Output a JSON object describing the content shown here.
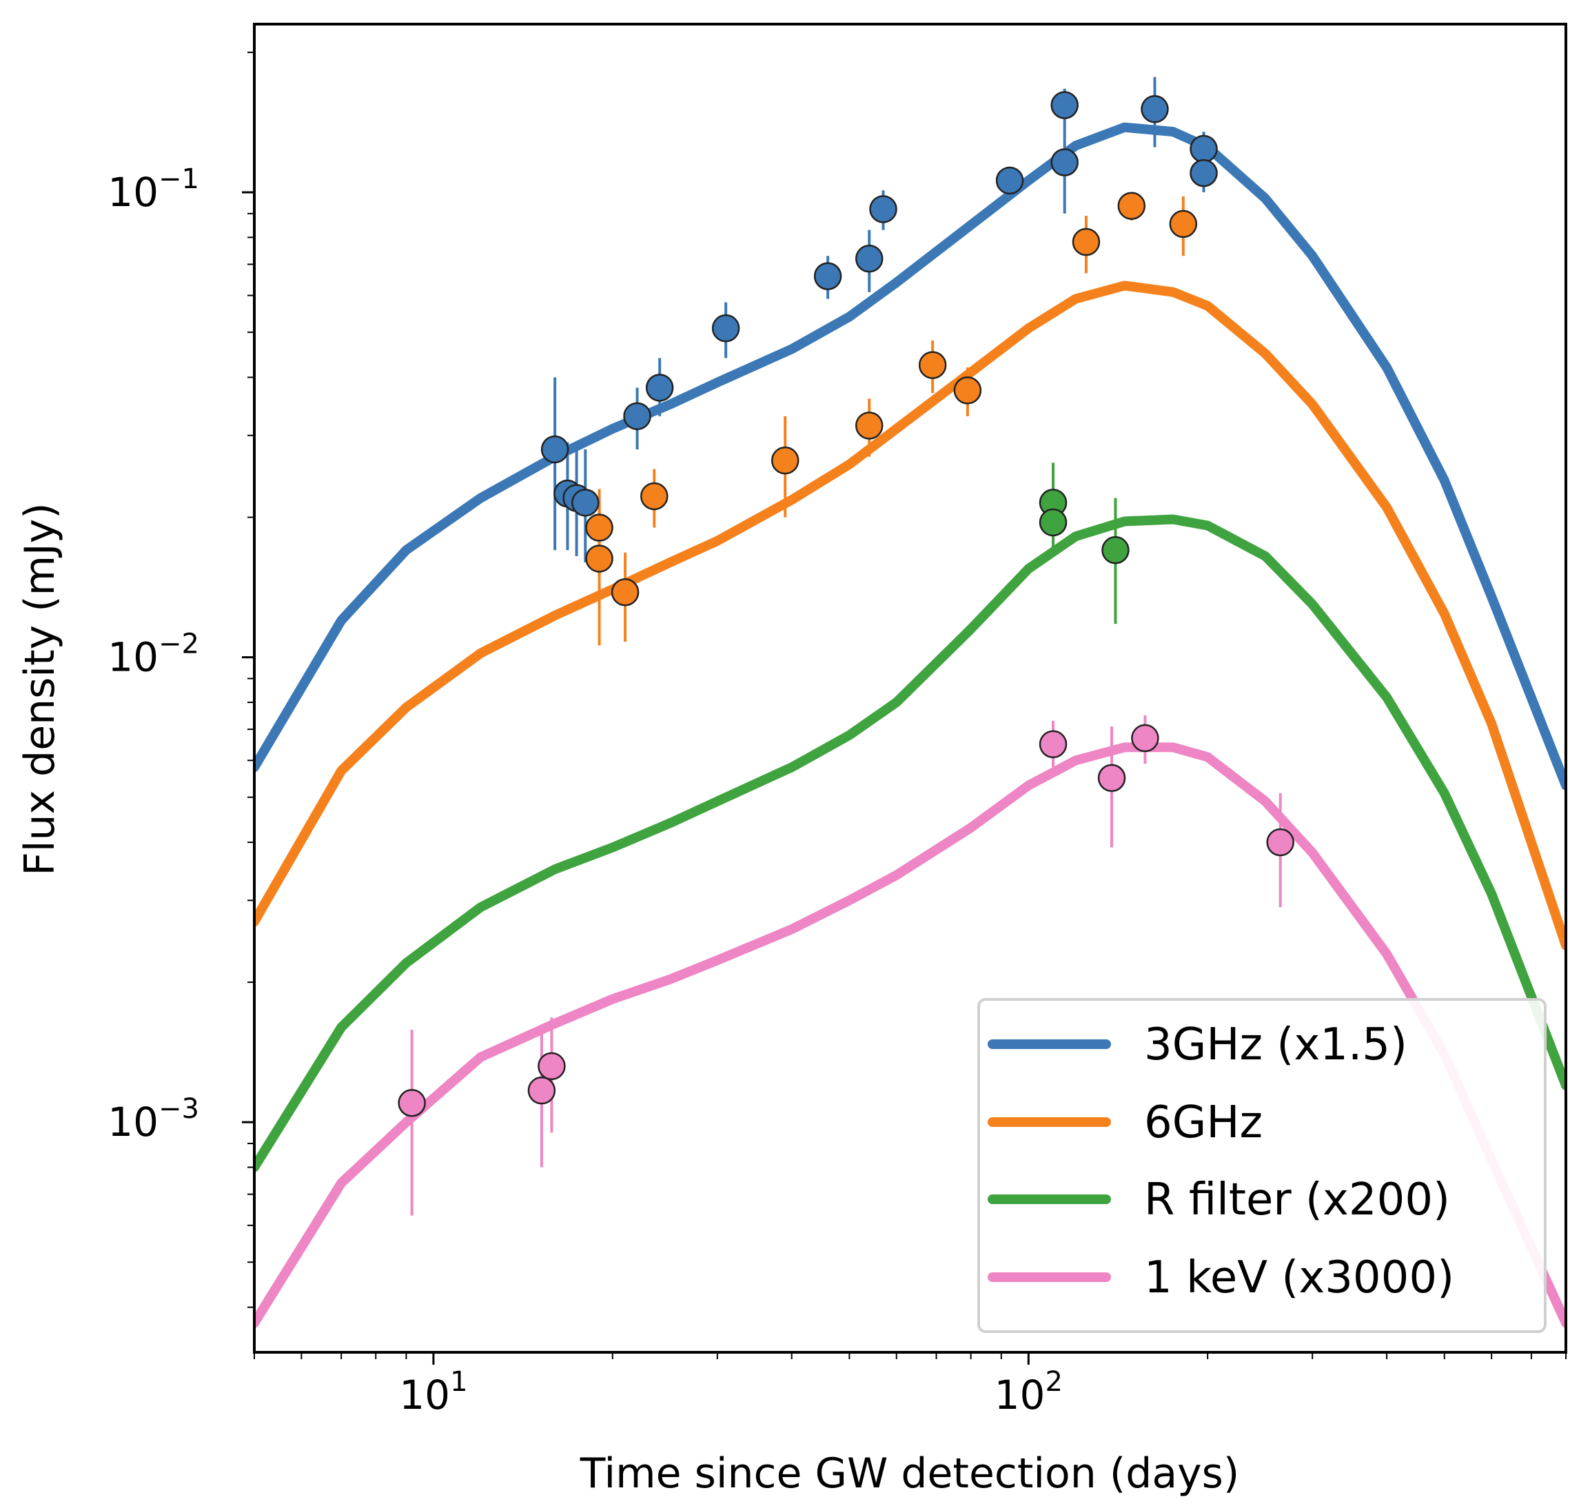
{
  "chart_data": {
    "type": "line",
    "x_scale": "log",
    "y_scale": "log",
    "xlabel": "Time since GW detection (days)",
    "ylabel": "Flux density (mJy)",
    "xlim": [
      5,
      800
    ],
    "ylim": [
      0.00032,
      0.23
    ],
    "x_ticks": [
      {
        "value": 10,
        "base": "10",
        "exp": "1"
      },
      {
        "value": 100,
        "base": "10",
        "exp": "2"
      }
    ],
    "y_ticks": [
      {
        "value": 0.001,
        "base": "10",
        "exp": "−3"
      },
      {
        "value": 0.01,
        "base": "10",
        "exp": "−2"
      },
      {
        "value": 0.1,
        "base": "10",
        "exp": "−1"
      }
    ],
    "legend_position": "lower-right",
    "series": [
      {
        "name": "3GHz (x1.5)",
        "color": "#3b78b5",
        "model": {
          "x": [
            5,
            7,
            9,
            12,
            16,
            20,
            25,
            30,
            40,
            50,
            60,
            80,
            100,
            120,
            145,
            175,
            200,
            250,
            300,
            400,
            500,
            600,
            800
          ],
          "y": [
            0.0058,
            0.012,
            0.017,
            0.022,
            0.027,
            0.031,
            0.035,
            0.039,
            0.046,
            0.054,
            0.064,
            0.085,
            0.106,
            0.126,
            0.138,
            0.135,
            0.125,
            0.097,
            0.073,
            0.042,
            0.024,
            0.0135,
            0.0053
          ]
        },
        "points": [
          {
            "x": 16,
            "y": 0.028,
            "ylo": 0.017,
            "yhi": 0.04
          },
          {
            "x": 16.8,
            "y": 0.0225,
            "ylo": 0.017,
            "yhi": 0.029
          },
          {
            "x": 17.4,
            "y": 0.022,
            "ylo": 0.0165,
            "yhi": 0.0285
          },
          {
            "x": 18,
            "y": 0.0215,
            "ylo": 0.016,
            "yhi": 0.028
          },
          {
            "x": 22,
            "y": 0.033,
            "ylo": 0.028,
            "yhi": 0.038
          },
          {
            "x": 24,
            "y": 0.038,
            "ylo": 0.033,
            "yhi": 0.044
          },
          {
            "x": 31,
            "y": 0.051,
            "ylo": 0.044,
            "yhi": 0.058
          },
          {
            "x": 46,
            "y": 0.066,
            "ylo": 0.059,
            "yhi": 0.073
          },
          {
            "x": 54,
            "y": 0.072,
            "ylo": 0.061,
            "yhi": 0.083
          },
          {
            "x": 57,
            "y": 0.092,
            "ylo": 0.083,
            "yhi": 0.101
          },
          {
            "x": 93,
            "y": 0.106,
            "ylo": 0.099,
            "yhi": 0.113
          },
          {
            "x": 115,
            "y": 0.154,
            "ylo": 0.141,
            "yhi": 0.167
          },
          {
            "x": 115,
            "y": 0.116,
            "ylo": 0.09,
            "yhi": 0.142
          },
          {
            "x": 163,
            "y": 0.151,
            "ylo": 0.125,
            "yhi": 0.177
          },
          {
            "x": 197,
            "y": 0.124,
            "ylo": 0.113,
            "yhi": 0.135
          },
          {
            "x": 197,
            "y": 0.11,
            "ylo": 0.1,
            "yhi": 0.12
          }
        ]
      },
      {
        "name": "6GHz",
        "color": "#f5811d",
        "model": {
          "x": [
            5,
            7,
            9,
            12,
            16,
            20,
            25,
            30,
            40,
            50,
            60,
            80,
            100,
            120,
            145,
            175,
            200,
            250,
            300,
            400,
            500,
            600,
            800
          ],
          "y": [
            0.0027,
            0.0057,
            0.0078,
            0.0102,
            0.0123,
            0.014,
            0.016,
            0.0178,
            0.0218,
            0.026,
            0.031,
            0.041,
            0.051,
            0.059,
            0.063,
            0.061,
            0.057,
            0.045,
            0.035,
            0.021,
            0.0124,
            0.0072,
            0.0024
          ]
        },
        "points": [
          {
            "x": 19,
            "y": 0.019,
            "ylo": 0.015,
            "yhi": 0.023
          },
          {
            "x": 19,
            "y": 0.0163,
            "ylo": 0.0106,
            "yhi": 0.022
          },
          {
            "x": 21,
            "y": 0.0138,
            "ylo": 0.0108,
            "yhi": 0.0168
          },
          {
            "x": 23.5,
            "y": 0.0222,
            "ylo": 0.019,
            "yhi": 0.0254
          },
          {
            "x": 39,
            "y": 0.0265,
            "ylo": 0.02,
            "yhi": 0.033
          },
          {
            "x": 54,
            "y": 0.0315,
            "ylo": 0.027,
            "yhi": 0.036
          },
          {
            "x": 69,
            "y": 0.0425,
            "ylo": 0.037,
            "yhi": 0.048
          },
          {
            "x": 79,
            "y": 0.0375,
            "ylo": 0.033,
            "yhi": 0.042
          },
          {
            "x": 125,
            "y": 0.0782,
            "ylo": 0.067,
            "yhi": 0.089
          },
          {
            "x": 149,
            "y": 0.0935,
            "ylo": 0.087,
            "yhi": 0.1
          },
          {
            "x": 182,
            "y": 0.0855,
            "ylo": 0.073,
            "yhi": 0.098
          }
        ]
      },
      {
        "name": "R filter (x200)",
        "color": "#3fa33f",
        "model": {
          "x": [
            5,
            7,
            9,
            12,
            16,
            20,
            25,
            30,
            40,
            50,
            60,
            80,
            100,
            120,
            145,
            175,
            200,
            250,
            300,
            400,
            500,
            600,
            800
          ],
          "y": [
            0.0008,
            0.0016,
            0.0022,
            0.0029,
            0.0035,
            0.0039,
            0.0044,
            0.0049,
            0.0058,
            0.0068,
            0.008,
            0.0115,
            0.0155,
            0.0182,
            0.0196,
            0.0198,
            0.0192,
            0.0165,
            0.013,
            0.0082,
            0.0051,
            0.0031,
            0.0012
          ]
        },
        "points": [
          {
            "x": 110,
            "y": 0.0215,
            "ylo": 0.0168,
            "yhi": 0.0262
          },
          {
            "x": 110,
            "y": 0.0195,
            "ylo": 0.0172,
            "yhi": 0.0218
          },
          {
            "x": 140,
            "y": 0.017,
            "ylo": 0.0118,
            "yhi": 0.022
          }
        ]
      },
      {
        "name": "1 keV (x3000)",
        "color": "#ee85c4",
        "model": {
          "x": [
            5,
            7,
            9,
            12,
            16,
            20,
            25,
            30,
            40,
            50,
            60,
            80,
            100,
            120,
            145,
            175,
            200,
            250,
            300,
            400,
            500,
            600,
            800
          ],
          "y": [
            0.00037,
            0.00074,
            0.001,
            0.00138,
            0.00163,
            0.00184,
            0.00203,
            0.00223,
            0.0026,
            0.003,
            0.0034,
            0.0043,
            0.0053,
            0.006,
            0.0064,
            0.0064,
            0.0061,
            0.0049,
            0.0038,
            0.0023,
            0.0014,
            0.00083,
            0.00037
          ]
        },
        "points": [
          {
            "x": 9.2,
            "y": 0.0011,
            "ylo": 0.00063,
            "yhi": 0.00158
          },
          {
            "x": 15.2,
            "y": 0.00117,
            "ylo": 0.0008,
            "yhi": 0.00155
          },
          {
            "x": 15.8,
            "y": 0.00132,
            "ylo": 0.00095,
            "yhi": 0.00168
          },
          {
            "x": 110,
            "y": 0.0065,
            "ylo": 0.0058,
            "yhi": 0.0073
          },
          {
            "x": 138,
            "y": 0.0055,
            "ylo": 0.0039,
            "yhi": 0.0071
          },
          {
            "x": 157,
            "y": 0.0067,
            "ylo": 0.0059,
            "yhi": 0.0075
          },
          {
            "x": 265,
            "y": 0.004,
            "ylo": 0.0029,
            "yhi": 0.0051
          }
        ]
      }
    ]
  }
}
